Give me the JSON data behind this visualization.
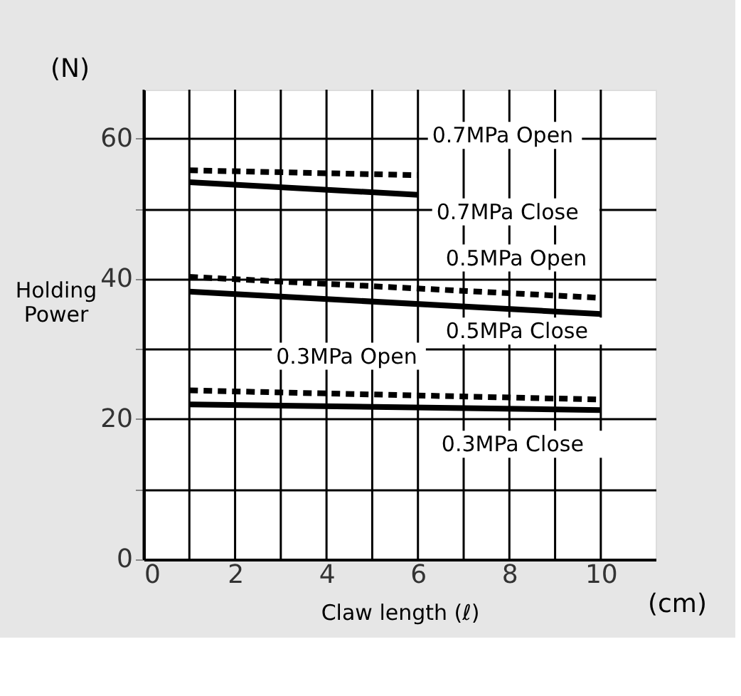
{
  "chart_data": {
    "type": "line",
    "xlabel": "Claw length (ℓ)",
    "ylabel": "Holding Power",
    "annotations": [
      "(N)",
      "(cm)"
    ],
    "xlim": [
      0,
      11.2
    ],
    "ylim": [
      0,
      67
    ],
    "xticks": [
      0,
      {
        "value": 1,
        "label": null
      },
      2,
      {
        "value": 3,
        "label": null
      },
      4,
      {
        "value": 5,
        "label": null
      },
      6,
      {
        "value": 7,
        "label": null
      },
      8,
      {
        "value": 9,
        "label": null
      },
      10
    ],
    "yticks": [
      0,
      {
        "value": 10,
        "label": null
      },
      20,
      {
        "value": 30,
        "label": null
      },
      40,
      {
        "value": 50,
        "label": null
      },
      60
    ],
    "grid": true,
    "series": [
      {
        "name": "0.7MPa Open",
        "color": "#000000",
        "line_style": "dashed",
        "x": [
          1,
          6
        ],
        "values": [
          55.5,
          54.8
        ]
      },
      {
        "name": "0.7MPa Close",
        "color": "#000000",
        "line_style": "solid",
        "x": [
          1,
          6
        ],
        "values": [
          53.8,
          52.0
        ]
      },
      {
        "name": "0.5MPa Open",
        "color": "#000000",
        "line_style": "dashed",
        "x": [
          1,
          10
        ],
        "values": [
          40.3,
          37.3
        ]
      },
      {
        "name": "0.5MPa Close",
        "color": "#000000",
        "line_style": "solid",
        "x": [
          1,
          10
        ],
        "values": [
          38.2,
          35.0
        ]
      },
      {
        "name": "0.3MPa Open",
        "color": "#000000",
        "line_style": "dashed",
        "x": [
          1,
          10
        ],
        "values": [
          24.1,
          22.8
        ]
      },
      {
        "name": "0.3MPa Close",
        "color": "#000000",
        "line_style": "solid",
        "x": [
          1,
          10
        ],
        "values": [
          22.1,
          21.3
        ]
      }
    ]
  }
}
